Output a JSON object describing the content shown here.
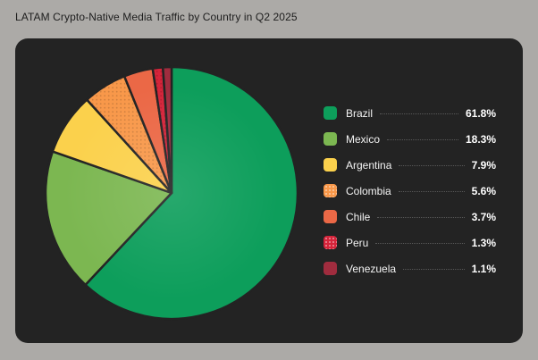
{
  "page": {
    "title": "LATAM Crypto-Native Media Traffic by Country in Q2 2025"
  },
  "theme": {
    "page_background": "#acaaa7",
    "panel_background": "#232323",
    "title_color": "#1d1d1d",
    "legend_label_color": "#f4f4f4",
    "legend_pct_color": "#ffffff",
    "leader_line_color": "#585858",
    "slice_stroke_color": "#232323"
  },
  "chart_data": {
    "type": "pie",
    "title": "LATAM Crypto-Native Media Traffic by Country in Q2 2025",
    "start_angle": "top",
    "direction": "clockwise",
    "legend_position": "right",
    "series": [
      {
        "label": "Brazil",
        "value": 61.8,
        "display": "61.8%",
        "color": "#0d9e5b",
        "pattern": "solid"
      },
      {
        "label": "Mexico",
        "value": 18.3,
        "display": "18.3%",
        "color": "#7cb751",
        "pattern": "solid"
      },
      {
        "label": "Argentina",
        "value": 7.9,
        "display": "7.9%",
        "color": "#fbd14c",
        "pattern": "solid"
      },
      {
        "label": "Colombia",
        "value": 5.6,
        "display": "5.6%",
        "color": "#f8984a",
        "pattern": "dots"
      },
      {
        "label": "Chile",
        "value": 3.7,
        "display": "3.7%",
        "color": "#eb6846",
        "pattern": "solid"
      },
      {
        "label": "Peru",
        "value": 1.3,
        "display": "1.3%",
        "color": "#d5243a",
        "pattern": "dots"
      },
      {
        "label": "Venezuela",
        "value": 1.1,
        "display": "1.1%",
        "color": "#a02c3e",
        "pattern": "solid"
      }
    ]
  }
}
